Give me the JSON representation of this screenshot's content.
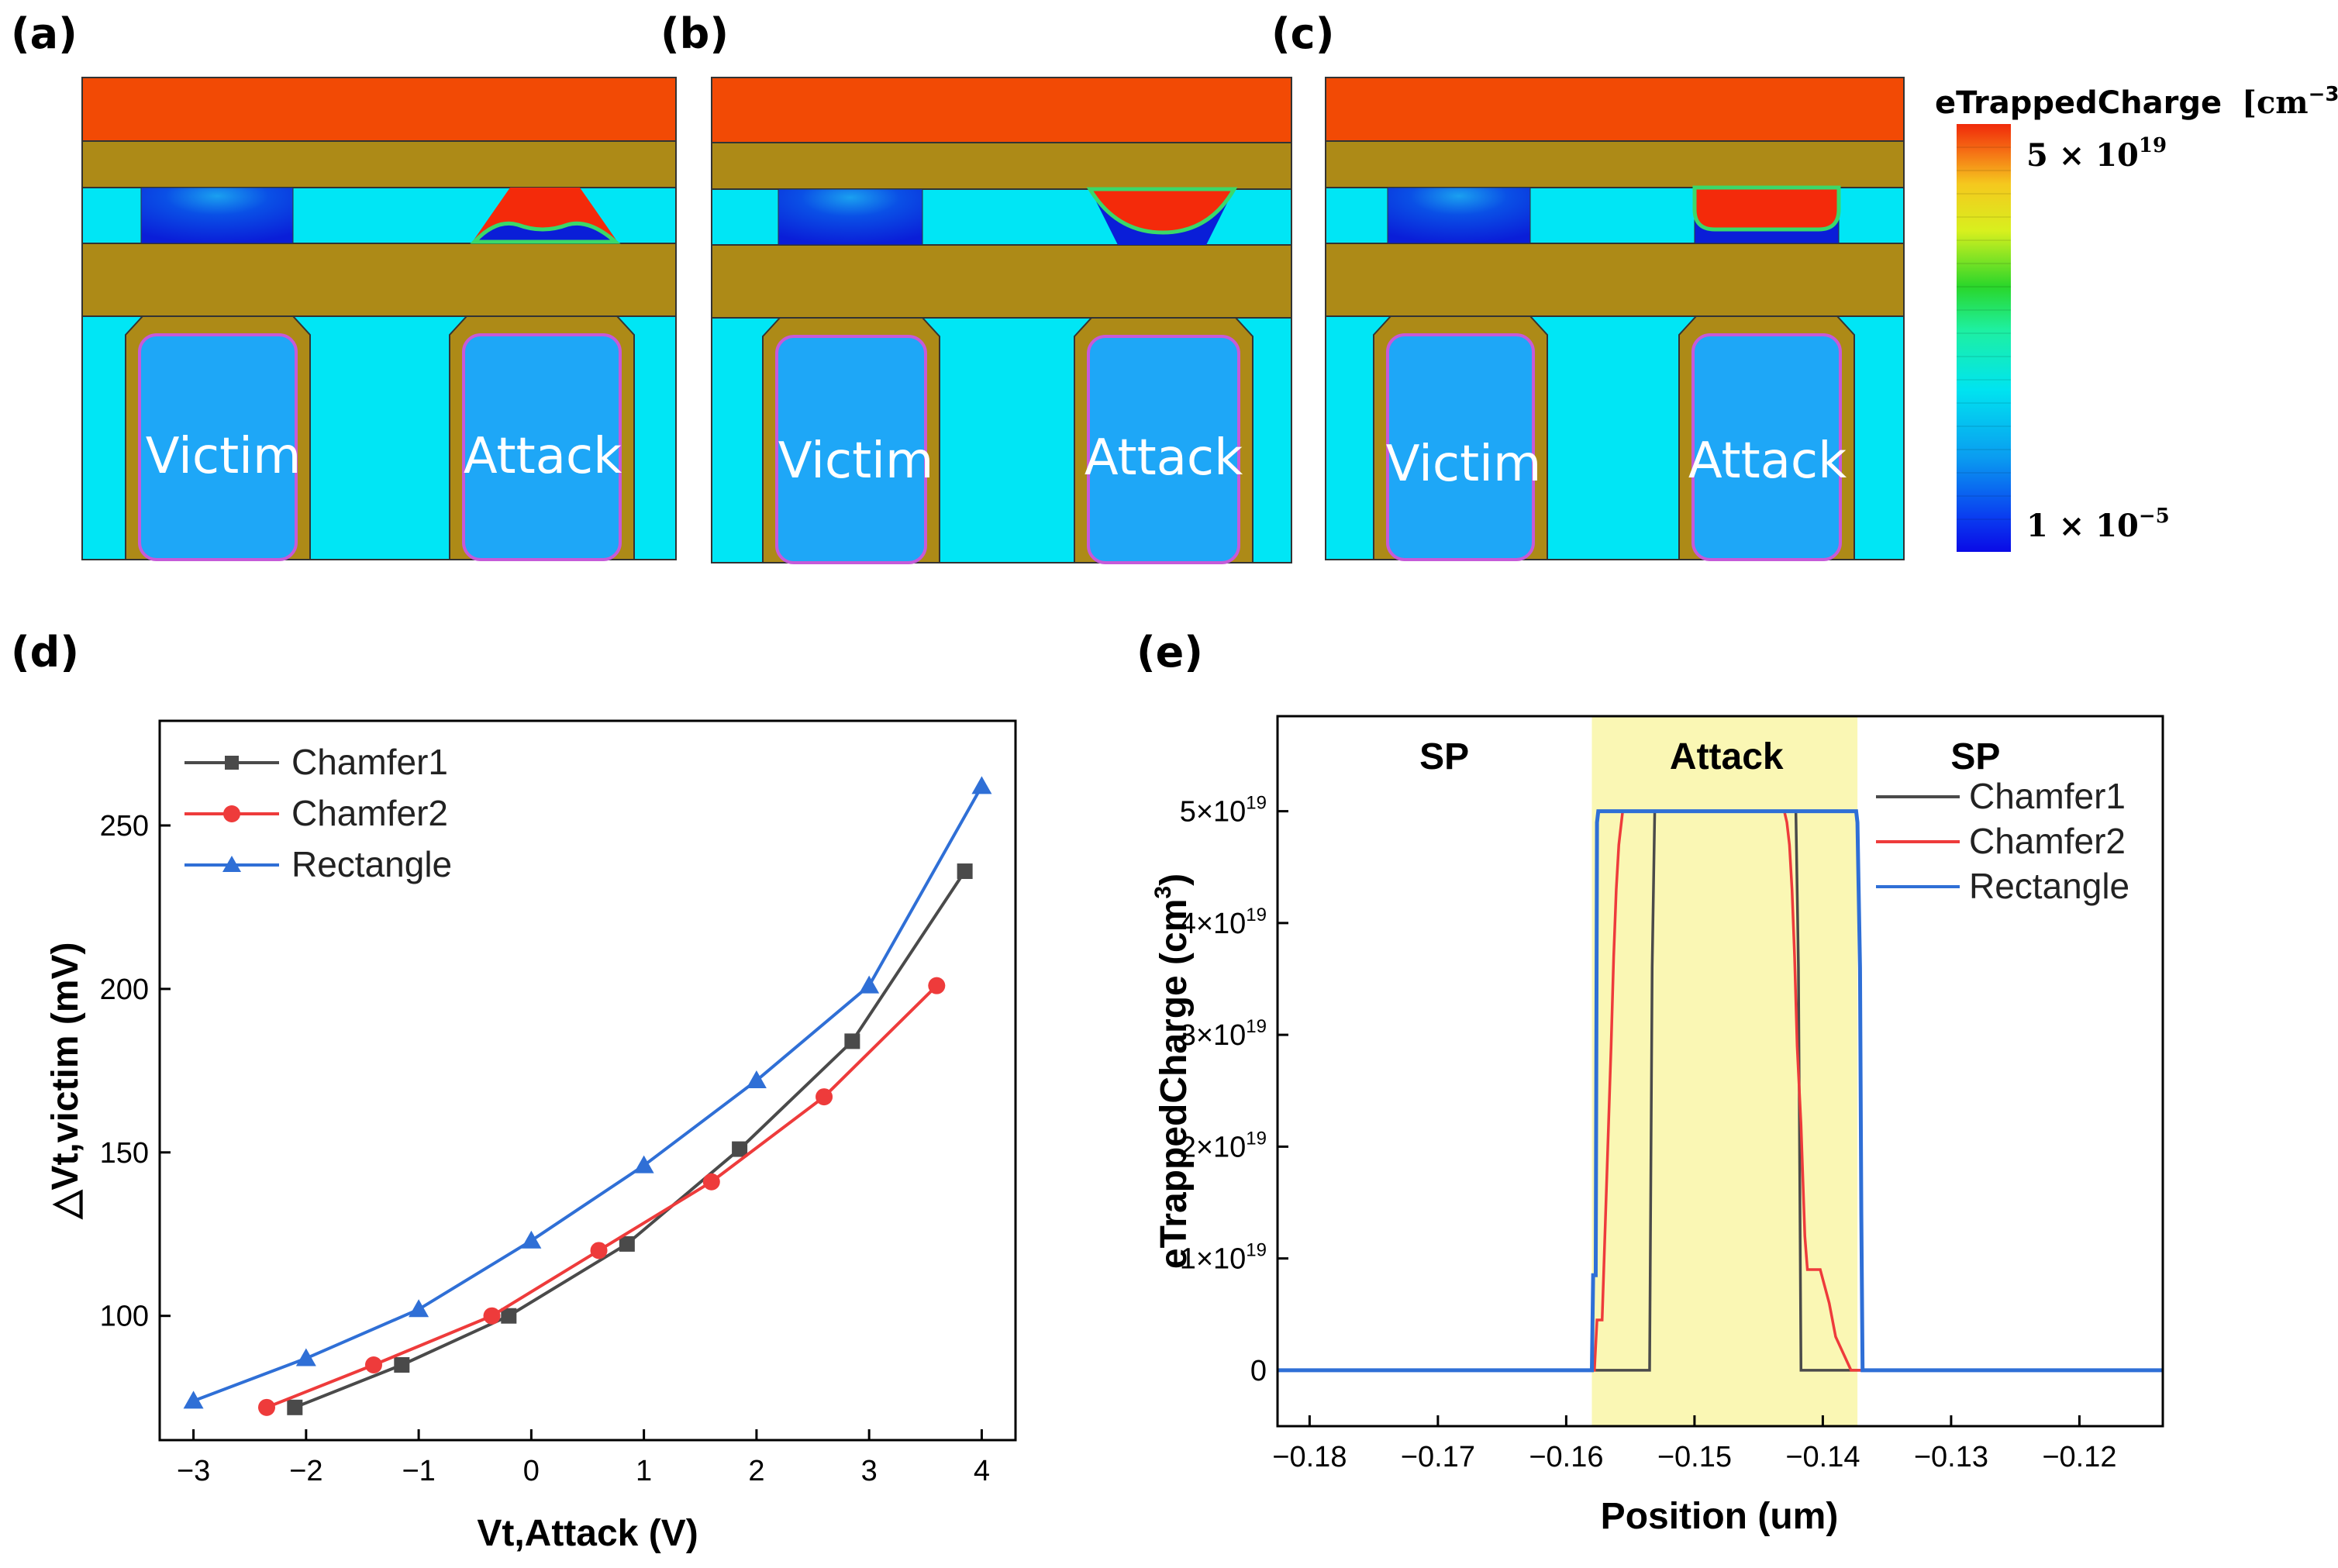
{
  "panel_labels": [
    "(a)",
    "(b)",
    "(c)",
    "(d)",
    "(e)"
  ],
  "device_labels": {
    "victim": "Victim",
    "attack": "Attack"
  },
  "colorbar": {
    "title": "eTrappedCharge",
    "unit": "[cm",
    "unit_exp": "−3",
    "unit_close": "]",
    "max_label": "5 × 10",
    "max_exp": "19",
    "min_label": "1 × 10",
    "min_exp": "−5"
  },
  "colors": {
    "chamfer1": "#4a4a4a",
    "chamfer2": "#ee3b3b",
    "rectangle": "#2f6fd6",
    "attack_region": "#faf7b4",
    "substrate": "#00e6f5",
    "nitride": "#ad8a17",
    "gate": "#f24a05",
    "channel": "#1ea7f7"
  },
  "chart_data": [
    {
      "id": "d",
      "type": "line",
      "xlabel": "Vt,Attack (V)",
      "ylabel": "△Vt,victim (mV)",
      "xlim": [
        -3.3,
        4.3
      ],
      "ylim": [
        62,
        282
      ],
      "xticks": [
        -3,
        -2,
        -1,
        0,
        1,
        2,
        3,
        4
      ],
      "xtick_labels": [
        "−3",
        "−2",
        "−1",
        "0",
        "1",
        "2",
        "3",
        "4"
      ],
      "yticks": [
        100,
        150,
        200,
        250
      ],
      "ytick_labels": [
        "100",
        "150",
        "200",
        "250"
      ],
      "legend": "top-left",
      "series": [
        {
          "name": "Chamfer1",
          "marker": "square",
          "x": [
            -2.1,
            -1.15,
            -0.2,
            0.85,
            1.85,
            2.85,
            3.85
          ],
          "y": [
            72,
            85,
            100,
            122,
            151,
            184,
            236
          ]
        },
        {
          "name": "Chamfer2",
          "marker": "circle",
          "x": [
            -2.35,
            -1.4,
            -0.35,
            0.6,
            1.6,
            2.6,
            3.6
          ],
          "y": [
            72,
            85,
            100,
            120,
            141,
            167,
            201
          ]
        },
        {
          "name": "Rectangle",
          "marker": "triangle",
          "x": [
            -3,
            -2,
            -1,
            0,
            1,
            2,
            3,
            4
          ],
          "y": [
            74,
            87,
            102,
            123,
            146,
            172,
            201,
            262
          ]
        }
      ]
    },
    {
      "id": "e",
      "type": "line",
      "xlabel": "Position (um)",
      "ylabel_main": "eTrappedCharge (cm",
      "ylabel_exp": "3",
      "ylabel_close": ")",
      "xlim": [
        -0.1825,
        -0.1135
      ],
      "ylim": [
        -0.5,
        5.85
      ],
      "y_scale_note": "×10^19",
      "xticks": [
        -0.18,
        -0.17,
        -0.16,
        -0.15,
        -0.14,
        -0.13,
        -0.12
      ],
      "xtick_labels": [
        "−0.18",
        "−0.17",
        "−0.16",
        "−0.15",
        "−0.14",
        "−0.13",
        "−0.12"
      ],
      "yticks": [
        0,
        1,
        2,
        3,
        4,
        5
      ],
      "ytick_labels": [
        "0",
        "1×10",
        "2×10",
        "3×10",
        "4×10",
        "5×10"
      ],
      "ytick_exp": "19",
      "shaded_region": {
        "label": "Attack",
        "from": -0.158,
        "to": -0.1373
      },
      "region_labels": [
        {
          "text": "SP",
          "x": -0.1695
        },
        {
          "text": "Attack",
          "x": -0.1475
        },
        {
          "text": "SP",
          "x": -0.1281
        }
      ],
      "legend": "right-upper",
      "series": [
        {
          "name": "Chamfer1",
          "x": [
            -0.1825,
            -0.158,
            -0.1575,
            -0.1574,
            -0.1535,
            -0.1533,
            -0.1531,
            -0.1421,
            -0.1419,
            -0.1417,
            -0.1378,
            -0.1377,
            -0.1135
          ],
          "y": [
            0,
            0,
            0,
            0,
            0,
            3.6,
            5,
            5,
            3.6,
            0,
            0,
            0,
            0
          ]
        },
        {
          "name": "Chamfer2",
          "x": [
            -0.1825,
            -0.1578,
            -0.1576,
            -0.1572,
            -0.1567,
            -0.1565,
            -0.1563,
            -0.1561,
            -0.1559,
            -0.1557,
            -0.1556,
            -0.143,
            -0.1428,
            -0.1426,
            -0.1424,
            -0.1422,
            -0.142,
            -0.1417,
            -0.1414,
            -0.1412,
            -0.1402,
            -0.1395,
            -0.139,
            -0.1378,
            -0.1135
          ],
          "y": [
            0,
            0,
            0.45,
            0.45,
            2.2,
            2.9,
            3.7,
            4.3,
            4.7,
            4.9,
            5,
            5,
            4.9,
            4.7,
            4.3,
            3.7,
            2.9,
            2.2,
            1.2,
            0.9,
            0.9,
            0.6,
            0.3,
            0,
            0
          ]
        },
        {
          "name": "Rectangle",
          "x": [
            -0.1825,
            -0.158,
            -0.1579,
            -0.1577,
            -0.1576,
            -0.1575,
            -0.1374,
            -0.1373,
            -0.1371,
            -0.137,
            -0.1369,
            -0.1135
          ],
          "y": [
            0,
            0,
            0.85,
            0.85,
            4.9,
            5,
            5,
            4.9,
            3.6,
            1.4,
            0,
            0
          ]
        }
      ]
    }
  ]
}
